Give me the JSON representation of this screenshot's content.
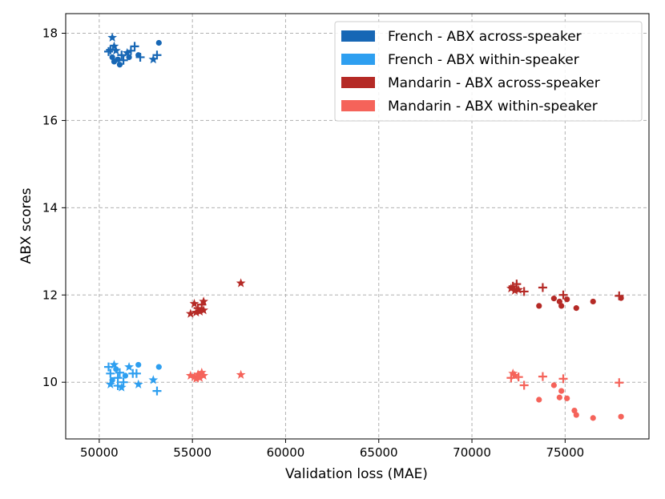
{
  "chart_data": {
    "type": "scatter",
    "xlabel": "Validation loss (MAE)",
    "ylabel": "ABX scores",
    "xlim": [
      48200,
      79500
    ],
    "ylim": [
      8.7,
      18.45
    ],
    "xticks": [
      50000,
      55000,
      60000,
      65000,
      70000,
      75000
    ],
    "xtick_labels": [
      "50000",
      "55000",
      "60000",
      "65000",
      "70000",
      "75000"
    ],
    "yticks": [
      10,
      12,
      14,
      16,
      18
    ],
    "ytick_labels": [
      "10",
      "12",
      "14",
      "16",
      "18"
    ],
    "grid": true,
    "legend_position": "top-right",
    "series": [
      {
        "name": "French - ABX across-speaker",
        "color": "#1767b5",
        "points": [
          {
            "x": 50700,
            "y": 17.9,
            "marker": "star"
          },
          {
            "x": 50600,
            "y": 17.62,
            "marker": "plus"
          },
          {
            "x": 50500,
            "y": 17.58,
            "marker": "plus"
          },
          {
            "x": 50800,
            "y": 17.7,
            "marker": "star"
          },
          {
            "x": 50900,
            "y": 17.6,
            "marker": "star"
          },
          {
            "x": 50700,
            "y": 17.45,
            "marker": "circle"
          },
          {
            "x": 50800,
            "y": 17.35,
            "marker": "circle"
          },
          {
            "x": 51000,
            "y": 17.4,
            "marker": "circle"
          },
          {
            "x": 51100,
            "y": 17.28,
            "marker": "circle"
          },
          {
            "x": 51200,
            "y": 17.5,
            "marker": "plus"
          },
          {
            "x": 51300,
            "y": 17.38,
            "marker": "plus"
          },
          {
            "x": 51500,
            "y": 17.55,
            "marker": "star"
          },
          {
            "x": 51600,
            "y": 17.45,
            "marker": "circle"
          },
          {
            "x": 51700,
            "y": 17.6,
            "marker": "plus"
          },
          {
            "x": 51900,
            "y": 17.7,
            "marker": "plus"
          },
          {
            "x": 52100,
            "y": 17.5,
            "marker": "circle"
          },
          {
            "x": 52200,
            "y": 17.45,
            "marker": "plus"
          },
          {
            "x": 52900,
            "y": 17.4,
            "marker": "star"
          },
          {
            "x": 53100,
            "y": 17.5,
            "marker": "plus"
          },
          {
            "x": 53200,
            "y": 17.78,
            "marker": "circle"
          }
        ]
      },
      {
        "name": "French - ABX within-speaker",
        "color": "#2e9ff0",
        "points": [
          {
            "x": 50500,
            "y": 10.35,
            "marker": "plus"
          },
          {
            "x": 50600,
            "y": 10.2,
            "marker": "plus"
          },
          {
            "x": 50800,
            "y": 10.4,
            "marker": "star"
          },
          {
            "x": 50700,
            "y": 10.05,
            "marker": "circle"
          },
          {
            "x": 50600,
            "y": 9.95,
            "marker": "star"
          },
          {
            "x": 50900,
            "y": 10.3,
            "marker": "circle"
          },
          {
            "x": 51000,
            "y": 10.1,
            "marker": "plus"
          },
          {
            "x": 51000,
            "y": 9.92,
            "marker": "plus"
          },
          {
            "x": 51100,
            "y": 10.22,
            "marker": "plus"
          },
          {
            "x": 51200,
            "y": 9.88,
            "marker": "star"
          },
          {
            "x": 51300,
            "y": 10.0,
            "marker": "plus"
          },
          {
            "x": 51400,
            "y": 10.15,
            "marker": "circle"
          },
          {
            "x": 51600,
            "y": 10.35,
            "marker": "star"
          },
          {
            "x": 51800,
            "y": 10.2,
            "marker": "plus"
          },
          {
            "x": 52000,
            "y": 10.2,
            "marker": "plus"
          },
          {
            "x": 52100,
            "y": 10.4,
            "marker": "circle"
          },
          {
            "x": 52100,
            "y": 9.95,
            "marker": "star"
          },
          {
            "x": 52900,
            "y": 10.05,
            "marker": "star"
          },
          {
            "x": 53100,
            "y": 9.8,
            "marker": "plus"
          },
          {
            "x": 53200,
            "y": 10.35,
            "marker": "circle"
          }
        ]
      },
      {
        "name": "Mandarin - ABX across-speaker",
        "color": "#b52a26",
        "points": [
          {
            "x": 54900,
            "y": 11.57,
            "marker": "star"
          },
          {
            "x": 55100,
            "y": 11.8,
            "marker": "star"
          },
          {
            "x": 55200,
            "y": 11.6,
            "marker": "star"
          },
          {
            "x": 55300,
            "y": 11.7,
            "marker": "plus"
          },
          {
            "x": 55400,
            "y": 11.62,
            "marker": "star"
          },
          {
            "x": 55500,
            "y": 11.78,
            "marker": "plus"
          },
          {
            "x": 55600,
            "y": 11.85,
            "marker": "star"
          },
          {
            "x": 55600,
            "y": 11.65,
            "marker": "star"
          },
          {
            "x": 57600,
            "y": 12.27,
            "marker": "star"
          },
          {
            "x": 72100,
            "y": 12.15,
            "marker": "star"
          },
          {
            "x": 72200,
            "y": 12.2,
            "marker": "plus"
          },
          {
            "x": 72300,
            "y": 12.1,
            "marker": "star"
          },
          {
            "x": 72400,
            "y": 12.25,
            "marker": "plus"
          },
          {
            "x": 72500,
            "y": 12.12,
            "marker": "star"
          },
          {
            "x": 72800,
            "y": 12.08,
            "marker": "plus"
          },
          {
            "x": 73600,
            "y": 11.75,
            "marker": "circle"
          },
          {
            "x": 73800,
            "y": 12.17,
            "marker": "plus"
          },
          {
            "x": 74400,
            "y": 11.92,
            "marker": "circle"
          },
          {
            "x": 74700,
            "y": 11.85,
            "marker": "circle"
          },
          {
            "x": 74800,
            "y": 11.75,
            "marker": "circle"
          },
          {
            "x": 74900,
            "y": 12.0,
            "marker": "plus"
          },
          {
            "x": 75100,
            "y": 11.9,
            "marker": "circle"
          },
          {
            "x": 75600,
            "y": 11.7,
            "marker": "circle"
          },
          {
            "x": 76500,
            "y": 11.85,
            "marker": "circle"
          },
          {
            "x": 77900,
            "y": 11.98,
            "marker": "plus"
          },
          {
            "x": 78000,
            "y": 11.93,
            "marker": "circle"
          }
        ]
      },
      {
        "name": "Mandarin - ABX within-speaker",
        "color": "#f5635a",
        "points": [
          {
            "x": 54900,
            "y": 10.15,
            "marker": "star"
          },
          {
            "x": 55100,
            "y": 10.12,
            "marker": "star"
          },
          {
            "x": 55200,
            "y": 10.08,
            "marker": "star"
          },
          {
            "x": 55300,
            "y": 10.18,
            "marker": "star"
          },
          {
            "x": 55400,
            "y": 10.1,
            "marker": "star"
          },
          {
            "x": 55500,
            "y": 10.22,
            "marker": "star"
          },
          {
            "x": 55600,
            "y": 10.15,
            "marker": "star"
          },
          {
            "x": 57600,
            "y": 10.17,
            "marker": "star"
          },
          {
            "x": 72100,
            "y": 10.1,
            "marker": "plus"
          },
          {
            "x": 72200,
            "y": 10.2,
            "marker": "star"
          },
          {
            "x": 72300,
            "y": 10.15,
            "marker": "star"
          },
          {
            "x": 72500,
            "y": 10.12,
            "marker": "plus"
          },
          {
            "x": 72800,
            "y": 9.93,
            "marker": "plus"
          },
          {
            "x": 73600,
            "y": 9.6,
            "marker": "circle"
          },
          {
            "x": 73800,
            "y": 10.13,
            "marker": "plus"
          },
          {
            "x": 74400,
            "y": 9.93,
            "marker": "circle"
          },
          {
            "x": 74700,
            "y": 9.65,
            "marker": "circle"
          },
          {
            "x": 74800,
            "y": 9.8,
            "marker": "circle"
          },
          {
            "x": 74900,
            "y": 10.08,
            "marker": "plus"
          },
          {
            "x": 75100,
            "y": 9.63,
            "marker": "circle"
          },
          {
            "x": 75500,
            "y": 9.35,
            "marker": "circle"
          },
          {
            "x": 75600,
            "y": 9.25,
            "marker": "circle"
          },
          {
            "x": 76500,
            "y": 9.18,
            "marker": "circle"
          },
          {
            "x": 77900,
            "y": 9.99,
            "marker": "plus"
          },
          {
            "x": 78000,
            "y": 9.21,
            "marker": "circle"
          }
        ]
      }
    ]
  }
}
